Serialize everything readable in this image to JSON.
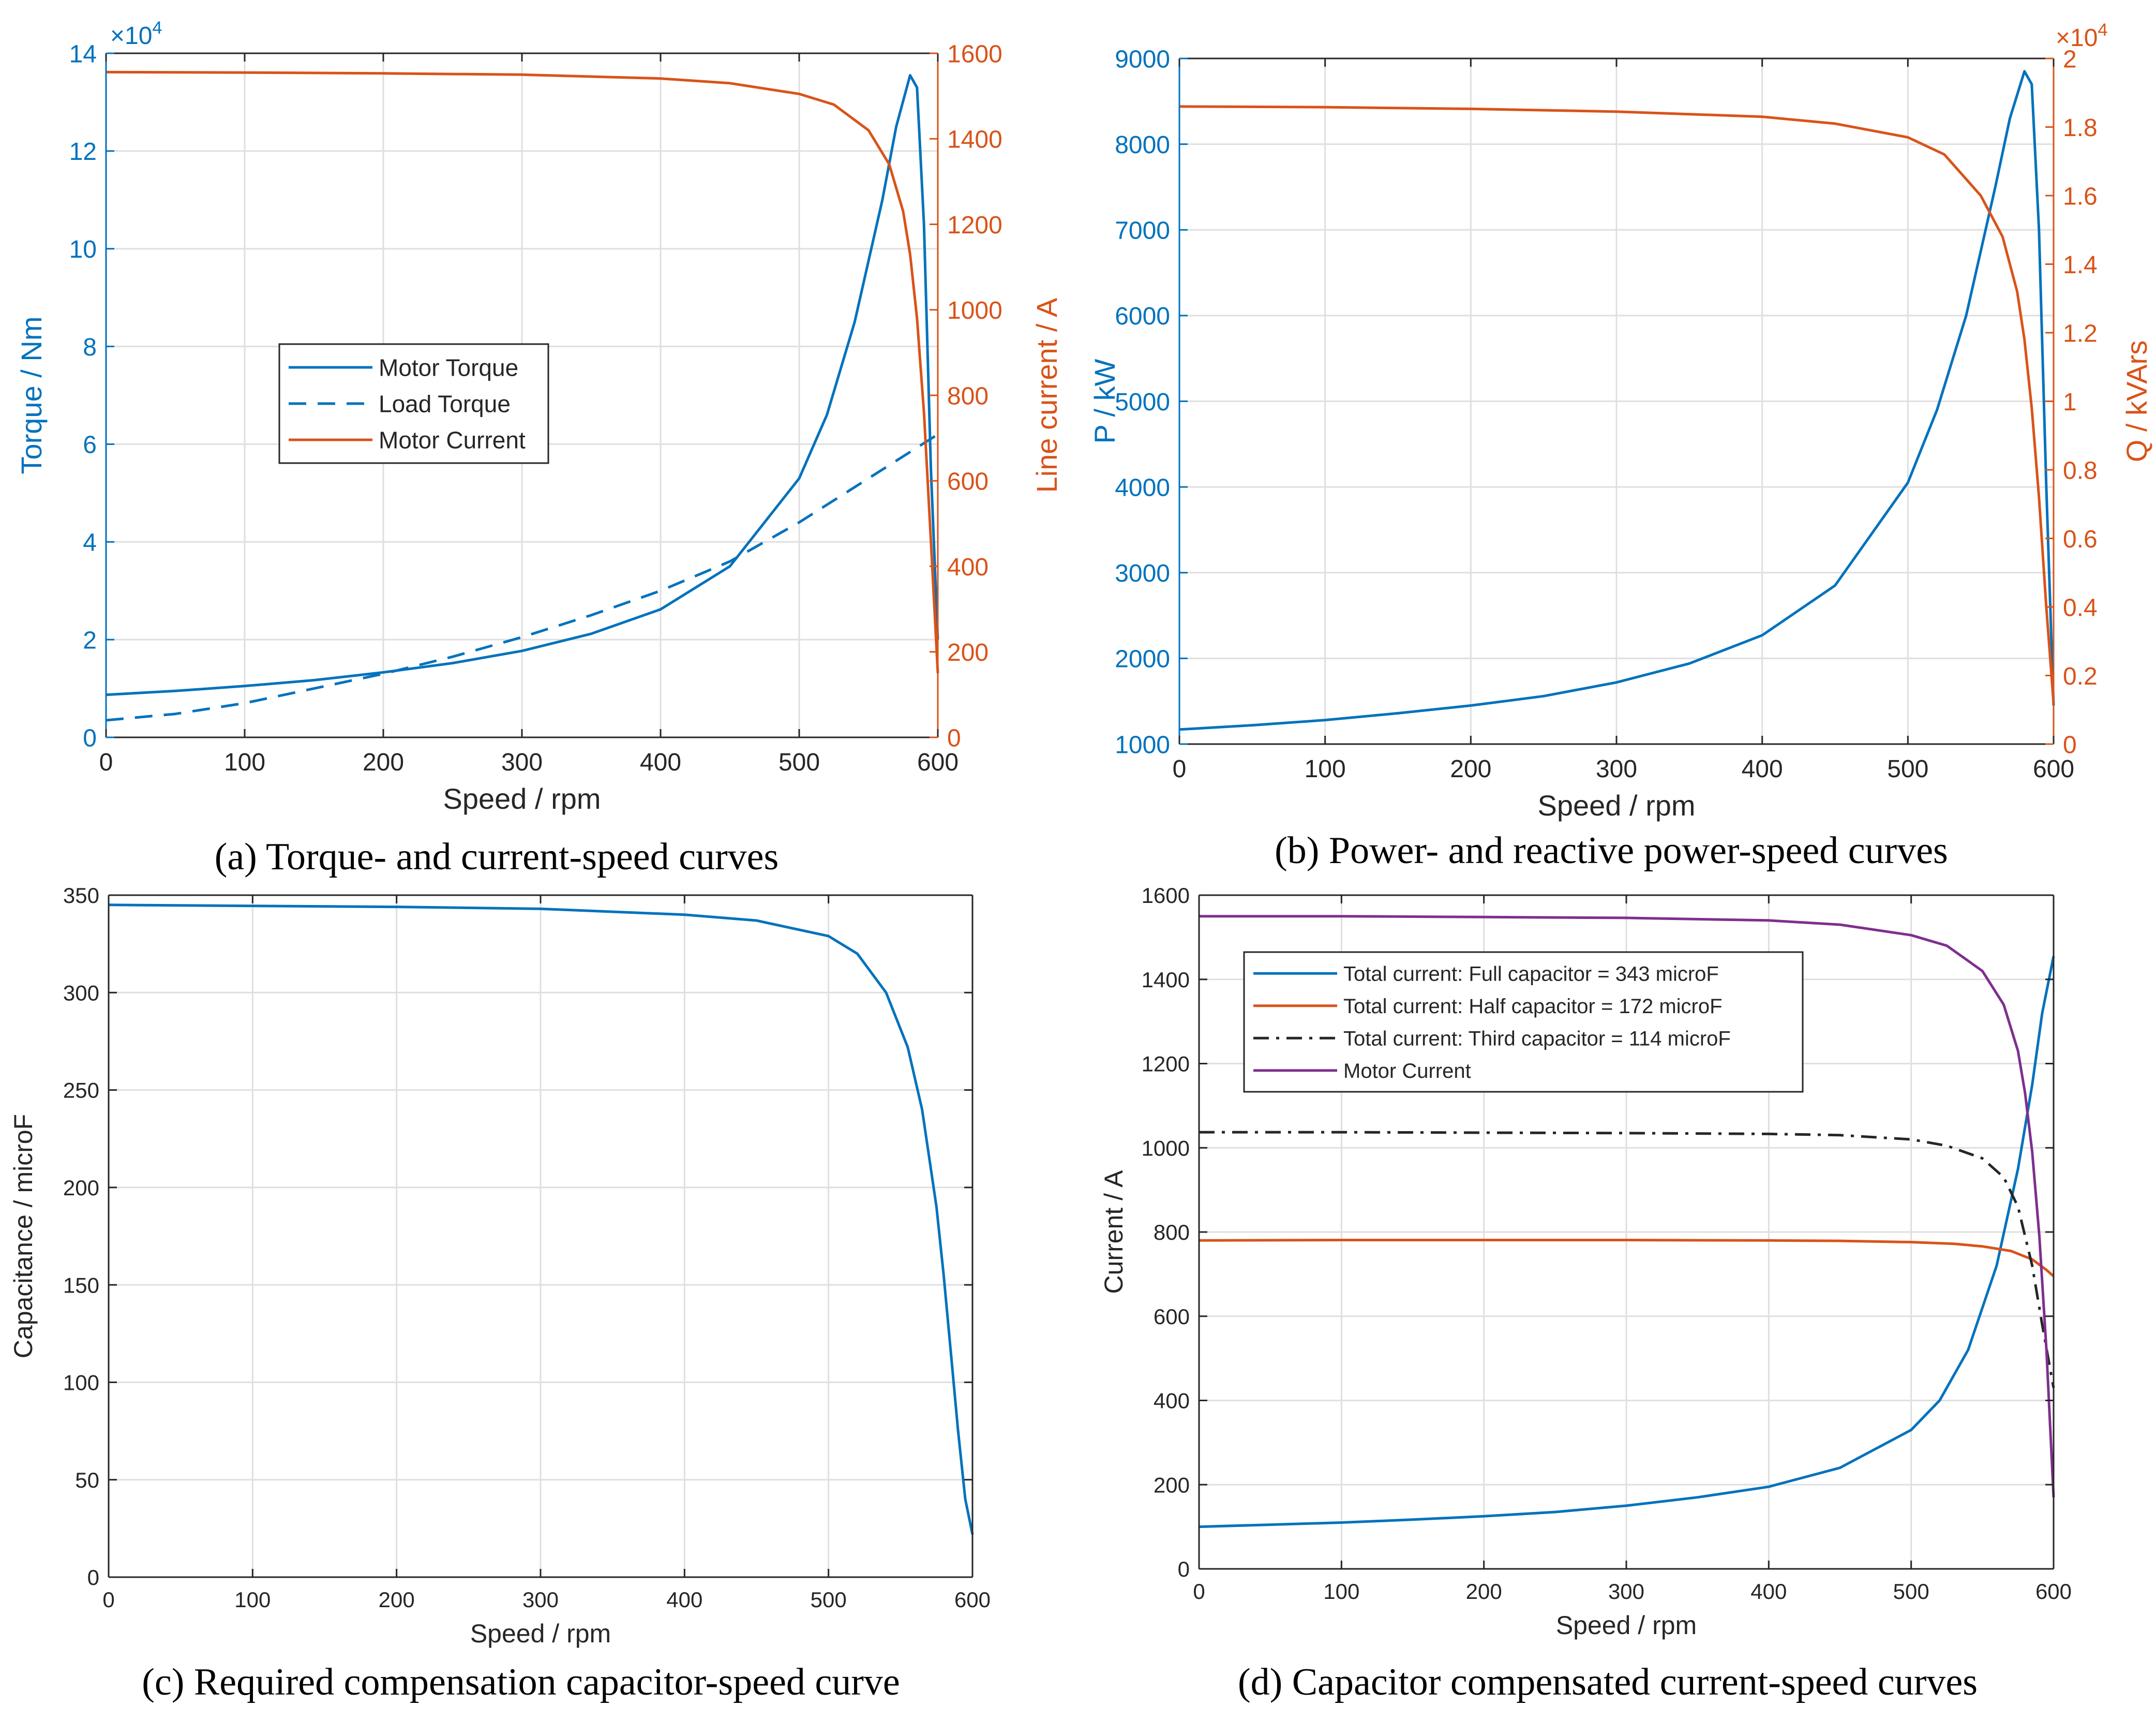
{
  "colors": {
    "blue": "#0072BD",
    "orange": "#D95319",
    "purple": "#7E2F8E",
    "dark": "#262626",
    "grid": "#DFDFDF",
    "axis": "#262626",
    "axis_label_gray": "#262626"
  },
  "chart_data": [
    {
      "id": "a",
      "type": "line",
      "caption": "(a) Torque- and current-speed curves",
      "xlabel": "Speed / rpm",
      "xlim": [
        0,
        600
      ],
      "xticks": [
        0,
        100,
        200,
        300,
        400,
        500,
        600
      ],
      "ylabel": "Torque / Nm",
      "ylim": [
        0,
        14
      ],
      "yticks": [
        0,
        2,
        4,
        6,
        8,
        10,
        12,
        14
      ],
      "yexponent": "×10",
      "yexponent_power": "4",
      "y2label": "Line current / A",
      "y2lim": [
        0,
        1600
      ],
      "y2ticks": [
        0,
        200,
        400,
        600,
        800,
        1000,
        1200,
        1400,
        1600
      ],
      "grid": true,
      "legend": {
        "position": "center-left",
        "entries": [
          "Motor Torque",
          "Load Torque",
          "Motor Current"
        ]
      },
      "series": [
        {
          "name": "Motor Torque",
          "axis": "left",
          "style": "solid",
          "color": "blue",
          "x": [
            0,
            50,
            100,
            150,
            200,
            250,
            300,
            350,
            400,
            450,
            500,
            520,
            540,
            560,
            570,
            580,
            585,
            590,
            595,
            600
          ],
          "y": [
            0.87,
            0.95,
            1.05,
            1.17,
            1.33,
            1.52,
            1.77,
            2.12,
            2.62,
            3.5,
            5.3,
            6.6,
            8.5,
            11.0,
            12.5,
            13.55,
            13.3,
            10.5,
            5.5,
            2.0
          ]
        },
        {
          "name": "Load Torque",
          "axis": "left",
          "style": "dashed",
          "color": "blue",
          "x": [
            0,
            50,
            100,
            150,
            200,
            250,
            300,
            350,
            400,
            450,
            500,
            550,
            600
          ],
          "y": [
            0.35,
            0.48,
            0.7,
            1.0,
            1.3,
            1.65,
            2.05,
            2.5,
            3.0,
            3.6,
            4.4,
            5.3,
            6.2
          ]
        },
        {
          "name": "Motor Current",
          "axis": "right",
          "style": "solid",
          "color": "orange",
          "x": [
            0,
            100,
            200,
            300,
            400,
            450,
            500,
            525,
            550,
            565,
            575,
            580,
            585,
            590,
            595,
            600
          ],
          "y": [
            1556,
            1555,
            1553,
            1550,
            1541,
            1530,
            1505,
            1480,
            1420,
            1340,
            1230,
            1130,
            980,
            760,
            460,
            150
          ]
        }
      ]
    },
    {
      "id": "b",
      "type": "line",
      "caption": "(b) Power- and reactive power-speed curves",
      "xlabel": "Speed / rpm",
      "xlim": [
        0,
        600
      ],
      "xticks": [
        0,
        100,
        200,
        300,
        400,
        500,
        600
      ],
      "ylabel": "P / kW",
      "ylim": [
        1000,
        9000
      ],
      "yticks": [
        1000,
        2000,
        3000,
        4000,
        5000,
        6000,
        7000,
        8000,
        9000
      ],
      "y2label": "Q / kVArs",
      "y2lim": [
        0,
        2
      ],
      "y2ticks": [
        0,
        0.2,
        0.4,
        0.6,
        0.8,
        1,
        1.2,
        1.4,
        1.6,
        1.8,
        2
      ],
      "y2exponent": "×10",
      "y2exponent_power": "4",
      "grid": true,
      "series": [
        {
          "name": "P",
          "axis": "left",
          "style": "solid",
          "color": "blue",
          "x": [
            0,
            50,
            100,
            150,
            200,
            250,
            300,
            350,
            400,
            450,
            500,
            520,
            540,
            560,
            570,
            580,
            585,
            590,
            595,
            600
          ],
          "y": [
            1170,
            1220,
            1280,
            1360,
            1450,
            1560,
            1720,
            1940,
            2270,
            2850,
            4050,
            4900,
            6000,
            7500,
            8300,
            8850,
            8700,
            7000,
            4000,
            1450
          ]
        },
        {
          "name": "Q",
          "axis": "right",
          "style": "solid",
          "color": "orange",
          "x": [
            0,
            100,
            200,
            300,
            400,
            450,
            500,
            525,
            550,
            565,
            575,
            580,
            585,
            590,
            595,
            600
          ],
          "y": [
            1.86,
            1.858,
            1.853,
            1.845,
            1.83,
            1.81,
            1.77,
            1.72,
            1.6,
            1.48,
            1.32,
            1.18,
            0.98,
            0.72,
            0.4,
            0.12
          ]
        }
      ]
    },
    {
      "id": "c",
      "type": "line",
      "caption": "(c) Required compensation capacitor-speed curve",
      "xlabel": "Speed / rpm",
      "xlim": [
        0,
        600
      ],
      "xticks": [
        0,
        100,
        200,
        300,
        400,
        500,
        600
      ],
      "ylabel": "Capacitance / microF",
      "ylim": [
        0,
        350
      ],
      "yticks": [
        0,
        50,
        100,
        150,
        200,
        250,
        300,
        350
      ],
      "grid": true,
      "series": [
        {
          "name": "Capacitance",
          "axis": "left",
          "style": "solid",
          "color": "blue",
          "x": [
            0,
            100,
            200,
            300,
            400,
            450,
            500,
            520,
            540,
            555,
            565,
            575,
            580,
            585,
            590,
            595,
            600
          ],
          "y": [
            345,
            344.5,
            344,
            343,
            340,
            337,
            329,
            320,
            300,
            272,
            240,
            190,
            155,
            115,
            75,
            40,
            22
          ]
        }
      ]
    },
    {
      "id": "d",
      "type": "line",
      "caption": "(d) Capacitor compensated current-speed curves",
      "xlabel": "Speed / rpm",
      "xlim": [
        0,
        600
      ],
      "xticks": [
        0,
        100,
        200,
        300,
        400,
        500,
        600
      ],
      "ylabel": "Current / A",
      "ylim": [
        0,
        1600
      ],
      "yticks": [
        0,
        200,
        400,
        600,
        800,
        1000,
        1200,
        1400,
        1600
      ],
      "grid": true,
      "legend": {
        "position": "top-left",
        "entries": [
          "Total current: Full capacitor = 343 microF",
          "Total current: Half capacitor = 172 microF",
          "Total current: Third capacitor = 114 microF",
          "Motor Current"
        ]
      },
      "series": [
        {
          "name": "Total current: Full capacitor = 343 microF",
          "axis": "left",
          "style": "solid",
          "color": "blue",
          "x": [
            0,
            50,
            100,
            150,
            200,
            250,
            300,
            350,
            400,
            450,
            500,
            520,
            540,
            560,
            575,
            585,
            592,
            600
          ],
          "y": [
            100,
            105,
            110,
            117,
            125,
            135,
            150,
            170,
            195,
            240,
            330,
            400,
            520,
            720,
            950,
            1150,
            1320,
            1455
          ]
        },
        {
          "name": "Total current: Half capacitor = 172 microF",
          "axis": "left",
          "style": "solid",
          "color": "orange",
          "x": [
            0,
            100,
            200,
            300,
            400,
            450,
            500,
            530,
            550,
            570,
            585,
            595,
            600
          ],
          "y": [
            780,
            781,
            781,
            781,
            780,
            779,
            776,
            772,
            766,
            755,
            735,
            710,
            695
          ]
        },
        {
          "name": "Total current: Third capacitor = 114 microF",
          "axis": "left",
          "style": "dashdot",
          "color": "dark",
          "x": [
            0,
            100,
            200,
            300,
            400,
            450,
            500,
            525,
            550,
            565,
            575,
            585,
            592,
            600
          ],
          "y": [
            1037,
            1037,
            1036,
            1035,
            1033,
            1030,
            1020,
            1005,
            975,
            930,
            860,
            720,
            580,
            430
          ]
        },
        {
          "name": "Motor Current",
          "axis": "left",
          "style": "solid",
          "color": "purple",
          "x": [
            0,
            100,
            200,
            300,
            400,
            450,
            500,
            525,
            550,
            565,
            575,
            580,
            585,
            590,
            595,
            600
          ],
          "y": [
            1550,
            1550,
            1548,
            1546,
            1540,
            1530,
            1505,
            1480,
            1420,
            1340,
            1230,
            1130,
            990,
            790,
            520,
            170
          ]
        }
      ]
    }
  ]
}
